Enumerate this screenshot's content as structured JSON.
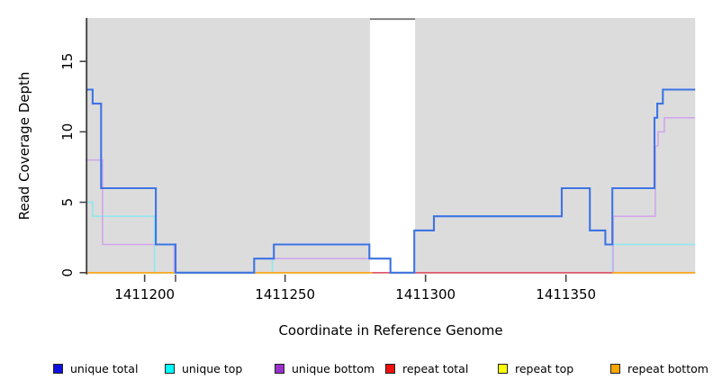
{
  "chart_data": {
    "type": "line",
    "subtype": "step",
    "title": "",
    "xlabel": "Coordinate in Reference Genome",
    "ylabel": "Read Coverage Depth",
    "xlim": [
      1411179.5,
      1411396
    ],
    "ylim": [
      0,
      18.05
    ],
    "x_ticks": [
      1411200,
      1411250,
      1411300,
      1411350
    ],
    "x_minor_ticks": [
      1411211
    ],
    "y_ticks": [
      0,
      5,
      10,
      15
    ],
    "grid": "off",
    "legend_position": "bottom",
    "plot_background": "#DCDCDC",
    "gap_region": [
      1411280.2,
      1411296.3
    ],
    "gap_top_border_color": "#777777",
    "series": [
      {
        "name": "unique total",
        "swatch_color": "#1111DD",
        "line_color": "#3D74E4",
        "line_width": 2.1,
        "x_end": 1411396,
        "step_points": [
          [
            1411179.5,
            13
          ],
          [
            1411181.5,
            12
          ],
          [
            1411184.5,
            6
          ],
          [
            1411204,
            2
          ],
          [
            1411211,
            0
          ],
          [
            1411239,
            1
          ],
          [
            1411246,
            2
          ],
          [
            1411280,
            1
          ],
          [
            1411287.5,
            0
          ],
          [
            1411296,
            3
          ],
          [
            1411303,
            4
          ],
          [
            1411348.5,
            6
          ],
          [
            1411358.5,
            3
          ],
          [
            1411364,
            2
          ],
          [
            1411366.5,
            6
          ],
          [
            1411381.5,
            11
          ],
          [
            1411382.5,
            12
          ],
          [
            1411384.5,
            13
          ]
        ]
      },
      {
        "name": "unique top",
        "swatch_color": "#00FFFF",
        "line_color": "#8FE8EE",
        "line_width": 1.6,
        "x_end": 1411396,
        "step_points": [
          [
            1411179.5,
            5
          ],
          [
            1411181.5,
            4
          ],
          [
            1411203.5,
            0
          ],
          [
            1411245.5,
            1
          ],
          [
            1411287.5,
            0
          ],
          [
            1411366.5,
            2
          ]
        ]
      },
      {
        "name": "unique bottom",
        "swatch_color": "#9932CC",
        "line_color": "#D2A6EC",
        "line_width": 1.6,
        "x_end": 1411396,
        "step_points": [
          [
            1411179.5,
            8
          ],
          [
            1411185,
            2
          ],
          [
            1411210.5,
            0
          ],
          [
            1411239,
            1
          ],
          [
            1411287.5,
            0
          ],
          [
            1411366.8,
            4
          ],
          [
            1411381.8,
            9
          ],
          [
            1411382.8,
            10
          ],
          [
            1411385,
            11
          ]
        ]
      },
      {
        "name": "repeat total",
        "swatch_color": "#EE1111",
        "line_color": "#DC5878",
        "line_width": 1.6,
        "x_end": 1411366.5,
        "step_points": [
          [
            1411281,
            0
          ]
        ]
      },
      {
        "name": "repeat top",
        "swatch_color": "#FFFF00",
        "line_color": "#FFFF33",
        "line_width": 1.6,
        "x_end": 1411396,
        "step_points": [
          [
            1411179.5,
            0
          ]
        ]
      },
      {
        "name": "repeat bottom",
        "swatch_color": "#FFA500",
        "line_color": "#FFA51E",
        "line_width": 1.6,
        "x_end": 1411396,
        "step_points": [
          [
            1411179.5,
            0
          ]
        ]
      }
    ],
    "draw_order": [
      "unique top",
      "unique bottom",
      "repeat top",
      "repeat bottom",
      "repeat total",
      "unique total"
    ]
  },
  "legend": {
    "items": [
      {
        "label": "unique total"
      },
      {
        "label": "unique top"
      },
      {
        "label": "unique bottom"
      },
      {
        "label": "repeat total"
      },
      {
        "label": "repeat top"
      },
      {
        "label": "repeat bottom"
      }
    ]
  }
}
